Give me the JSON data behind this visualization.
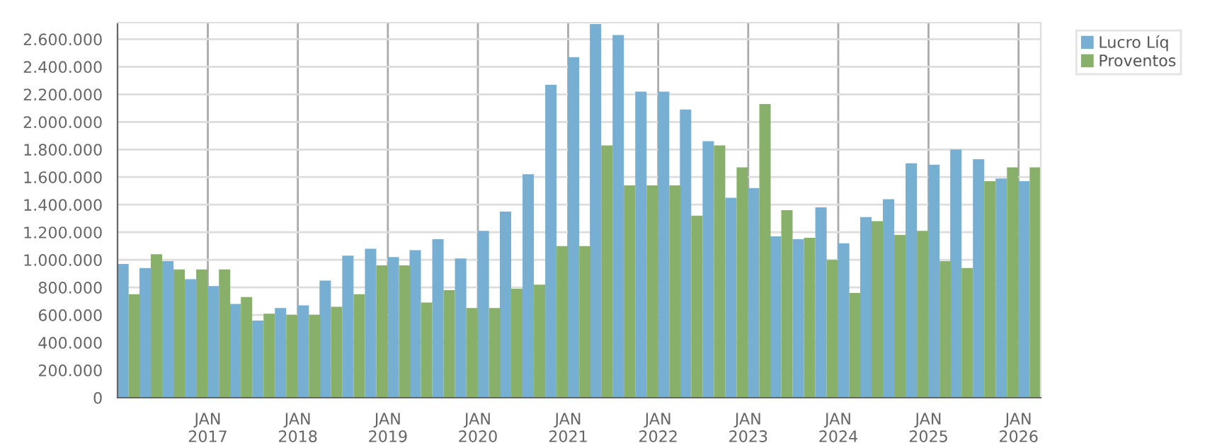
{
  "chart_data": {
    "type": "bar",
    "x": [
      "2016-02-15",
      "2016-05-15",
      "2016-08-15",
      "2016-11-15",
      "2017-02-15",
      "2017-05-15",
      "2017-08-15",
      "2017-11-15",
      "2018-02-15",
      "2018-05-15",
      "2018-08-15",
      "2018-11-15",
      "2019-02-15",
      "2019-05-15",
      "2019-08-15",
      "2019-11-15",
      "2020-02-15",
      "2020-05-15",
      "2020-08-15",
      "2020-11-15",
      "2021-02-15",
      "2021-05-15",
      "2021-08-15",
      "2021-11-15",
      "2022-02-15",
      "2022-05-15",
      "2022-08-15",
      "2022-11-15",
      "2023-02-15",
      "2023-05-15",
      "2023-08-15",
      "2023-11-15",
      "2024-02-15",
      "2024-05-15",
      "2024-08-15",
      "2024-11-15",
      "2025-02-15",
      "2025-05-15",
      "2025-08-15",
      "2025-11-15",
      "2026-02-15"
    ],
    "series": [
      {
        "name": "Lucro Líq",
        "color": "#77afd2",
        "values": [
          970000,
          940000,
          990000,
          860000,
          810000,
          680000,
          560000,
          650000,
          670000,
          850000,
          1030000,
          1080000,
          1020000,
          1070000,
          1150000,
          1010000,
          1210000,
          1350000,
          1620000,
          2270000,
          2470000,
          2710000,
          2630000,
          2220000,
          2220000,
          2090000,
          1860000,
          1450000,
          1520000,
          1170000,
          1150000,
          1380000,
          1120000,
          1310000,
          1440000,
          1700000,
          1690000,
          1800000,
          1730000,
          1590000,
          1570000
        ]
      },
      {
        "name": "Proventos",
        "color": "#88b06a",
        "values": [
          750000,
          1040000,
          930000,
          930000,
          930000,
          730000,
          610000,
          600000,
          600000,
          660000,
          750000,
          960000,
          960000,
          690000,
          780000,
          650000,
          650000,
          790000,
          820000,
          1100000,
          1100000,
          1830000,
          1540000,
          1540000,
          1540000,
          1320000,
          1830000,
          1670000,
          2130000,
          1360000,
          1160000,
          1000000,
          760000,
          1280000,
          1180000,
          1210000,
          990000,
          940000,
          1570000,
          1670000,
          1670000
        ]
      }
    ],
    "xlim": [
      "2016-01-01",
      "2026-04-01"
    ],
    "xticks": [
      {
        "value": "2017-01-01",
        "label": "JAN\n2017"
      },
      {
        "value": "2018-01-01",
        "label": "JAN\n2018"
      },
      {
        "value": "2019-01-01",
        "label": "JAN\n2019"
      },
      {
        "value": "2020-01-01",
        "label": "JAN\n2020"
      },
      {
        "value": "2021-01-01",
        "label": "JAN\n2021"
      },
      {
        "value": "2022-01-01",
        "label": "JAN\n2022"
      },
      {
        "value": "2023-01-01",
        "label": "JAN\n2023"
      },
      {
        "value": "2024-01-01",
        "label": "JAN\n2024"
      },
      {
        "value": "2025-01-01",
        "label": "JAN\n2025"
      },
      {
        "value": "2026-01-01",
        "label": "JAN\n2026"
      }
    ],
    "ylim": [
      0,
      2720000
    ],
    "yticks": [
      0,
      {
        "value": 200000,
        "label": "200.000"
      },
      {
        "value": 400000,
        "label": "400.000"
      },
      {
        "value": 600000,
        "label": "600.000"
      },
      {
        "value": 800000,
        "label": "800.000"
      },
      {
        "value": 1000000,
        "label": "1.000.000"
      },
      {
        "value": 1200000,
        "label": "1.200.000"
      },
      {
        "value": 1400000,
        "label": "1.400.000"
      },
      {
        "value": 1600000,
        "label": "1.600.000"
      },
      {
        "value": 1800000,
        "label": "1.800.000"
      },
      {
        "value": 2000000,
        "label": "2.000.000"
      },
      {
        "value": 2200000,
        "label": "2.200.000"
      },
      {
        "value": 2400000,
        "label": "2.400.000"
      },
      {
        "value": 2600000,
        "label": "2.600.000"
      }
    ],
    "grid": true,
    "legend": "top right"
  }
}
